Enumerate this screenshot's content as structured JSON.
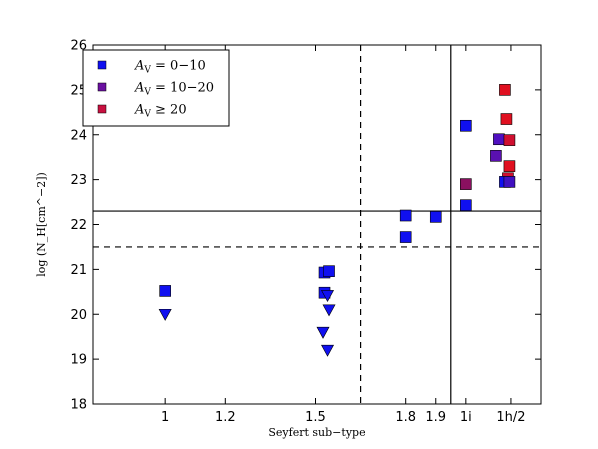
{
  "chart_data": {
    "type": "scatter",
    "xlabel": "Seyfert sub−type",
    "ylabel": "log (N_H[cm^−2])",
    "ylim": [
      18,
      26
    ],
    "xlim": [
      0.76,
      2.25
    ],
    "x_ticks": [
      {
        "value": 1.0,
        "label": "1"
      },
      {
        "value": 1.2,
        "label": "1.2"
      },
      {
        "value": 1.5,
        "label": "1.5"
      },
      {
        "value": 1.8,
        "label": "1.8"
      },
      {
        "value": 1.9,
        "label": "1.9"
      },
      {
        "value": 2.0,
        "label": "1i"
      },
      {
        "value": 2.15,
        "label": "1h/2"
      }
    ],
    "y_ticks": [
      18,
      19,
      20,
      21,
      22,
      23,
      24,
      25,
      26
    ],
    "reference_lines": [
      {
        "orientation": "horizontal",
        "value": 22.3,
        "style": "solid"
      },
      {
        "orientation": "horizontal",
        "value": 21.5,
        "style": "dashed"
      },
      {
        "orientation": "vertical",
        "value": 1.65,
        "style": "dashed"
      },
      {
        "orientation": "vertical",
        "value": 1.95,
        "style": "solid"
      }
    ],
    "legend": {
      "position": "top-left",
      "entries": [
        {
          "prefix": "A",
          "sub": "V",
          "suffix": " = 0−10",
          "color": "#1010f0"
        },
        {
          "prefix": "A",
          "sub": "V",
          "suffix": " = 10−20",
          "color": "#6a10a0"
        },
        {
          "prefix": "A",
          "sub": "V",
          "suffix": " ≥ 20",
          "color": "#c81040"
        }
      ]
    },
    "series": [
      {
        "marker": "square",
        "points": [
          {
            "x": 1.0,
            "y": 20.52,
            "color": "#1010f0"
          },
          {
            "x": 1.53,
            "y": 20.48,
            "color": "#1010f0"
          },
          {
            "x": 1.53,
            "y": 20.93,
            "color": "#1010f0"
          },
          {
            "x": 1.545,
            "y": 20.96,
            "color": "#1010f0"
          },
          {
            "x": 1.8,
            "y": 22.2,
            "color": "#1010f0"
          },
          {
            "x": 1.8,
            "y": 21.72,
            "color": "#1010f0"
          },
          {
            "x": 1.9,
            "y": 22.17,
            "color": "#1010f0"
          },
          {
            "x": 2.0,
            "y": 24.2,
            "color": "#1010f0"
          },
          {
            "x": 2.0,
            "y": 22.43,
            "color": "#1010f0"
          },
          {
            "x": 2.0,
            "y": 22.9,
            "color": "#8a1060"
          },
          {
            "x": 2.1,
            "y": 23.53,
            "color": "#5a10b0"
          },
          {
            "x": 2.11,
            "y": 23.9,
            "color": "#5010c0"
          },
          {
            "x": 2.13,
            "y": 25.0,
            "color": "#e01020"
          },
          {
            "x": 2.135,
            "y": 24.35,
            "color": "#e01020"
          },
          {
            "x": 2.145,
            "y": 23.88,
            "color": "#d01030"
          },
          {
            "x": 2.145,
            "y": 23.3,
            "color": "#e01020"
          },
          {
            "x": 2.14,
            "y": 23.03,
            "color": "#d01030"
          },
          {
            "x": 2.13,
            "y": 22.95,
            "color": "#1010f0"
          },
          {
            "x": 2.145,
            "y": 22.95,
            "color": "#4010c0"
          }
        ]
      },
      {
        "marker": "triangle-down",
        "points": [
          {
            "x": 1.0,
            "y": 20.0,
            "color": "#1010f0"
          },
          {
            "x": 1.54,
            "y": 20.42,
            "color": "#1010f0"
          },
          {
            "x": 1.545,
            "y": 20.1,
            "color": "#1010f0"
          },
          {
            "x": 1.525,
            "y": 19.6,
            "color": "#1010f0"
          },
          {
            "x": 1.54,
            "y": 19.2,
            "color": "#1010f0"
          }
        ]
      }
    ]
  }
}
